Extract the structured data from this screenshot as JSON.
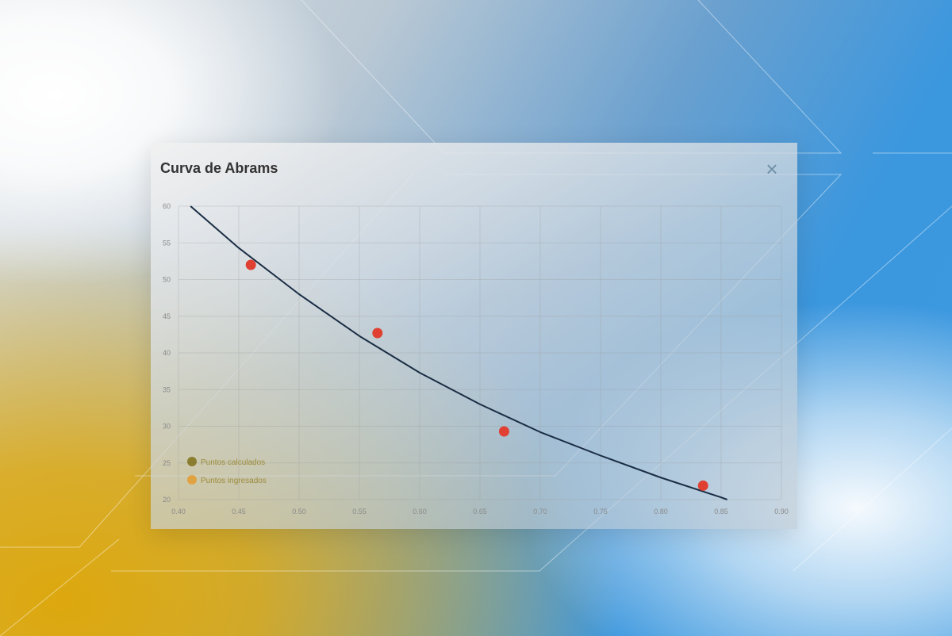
{
  "dialog": {
    "title": "Curva de Abrams",
    "close_icon": "close-icon"
  },
  "colors": {
    "curve": "#1a2d44",
    "points": "#e04032",
    "legend_curve": "#7a6a12",
    "legend_points": "#e59a2a"
  },
  "chart_data": {
    "type": "scatter",
    "title": "Curva de Abrams",
    "xlabel": "",
    "ylabel": "",
    "xlim": [
      0.4,
      0.9
    ],
    "ylim": [
      20,
      60
    ],
    "grid": true,
    "legend_position": "bottom-left",
    "x_ticks": [
      "0.40",
      "0.45",
      "0.50",
      "0.55",
      "0.60",
      "0.65",
      "0.70",
      "0.75",
      "0.80",
      "0.85",
      "0.90"
    ],
    "y_ticks": [
      "20",
      "25",
      "30",
      "35",
      "40",
      "45",
      "50",
      "55",
      "60"
    ],
    "series": [
      {
        "name": "Puntos calculados",
        "kind": "line",
        "x": [
          0.41,
          0.45,
          0.5,
          0.55,
          0.6,
          0.65,
          0.7,
          0.75,
          0.8,
          0.85,
          0.855
        ],
        "y": [
          60,
          54.3,
          48.0,
          42.3,
          37.3,
          33.0,
          29.2,
          26.0,
          23.0,
          20.3,
          20
        ]
      },
      {
        "name": "Puntos ingresados",
        "kind": "scatter",
        "x": [
          0.46,
          0.565,
          0.67,
          0.835
        ],
        "y": [
          52.0,
          42.7,
          29.3,
          21.9
        ]
      }
    ]
  }
}
